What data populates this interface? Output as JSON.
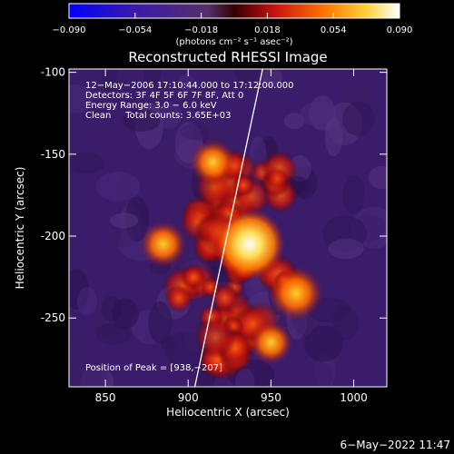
{
  "chart_data": {
    "type": "heatmap",
    "title": "Reconstructed RHESSI Image",
    "xlabel": "Heliocentric X (arcsec)",
    "ylabel": "Heliocentric Y (arcsec)",
    "xlim": [
      828,
      1020
    ],
    "ylim": [
      -292,
      -98
    ],
    "x_ticks": [
      "850",
      "900",
      "950",
      "1000"
    ],
    "y_ticks": [
      "-100",
      "-150",
      "-200",
      "-250"
    ],
    "x_tick_values": [
      850,
      900,
      950,
      1000
    ],
    "y_tick_values": [
      -100,
      -150,
      -200,
      -250
    ],
    "colorbar": {
      "tick_labels": [
        "−0.090",
        "−0.054",
        "−0.018",
        "0.018",
        "0.054",
        "0.090"
      ],
      "range": [
        -0.09,
        0.09
      ],
      "units": "(photons cm⁻² s⁻¹ asec⁻²)"
    },
    "annotations": [
      "12−May−2006 17:10:44.000 to 17:12:00.000",
      "Detectors: 3F 4F 5F 6F 7F 8F, Att 0",
      "Energy Range: 3.0 − 6.0 keV",
      "Clean     Total counts: 3.65E+03"
    ],
    "peak_label": "Position of Peak = [938,−207]",
    "peak_position": [
      938,
      -207
    ],
    "limb_line": [
      [
        904,
        -292
      ],
      [
        945,
        -98
      ]
    ],
    "timestamp": "6−May−2022 11:47",
    "hot_regions": [
      {
        "x": 937,
        "y": -205,
        "intensity": 0.09
      },
      {
        "x": 965,
        "y": -235,
        "intensity": 0.06
      },
      {
        "x": 885,
        "y": -205,
        "intensity": 0.045
      },
      {
        "x": 915,
        "y": -155,
        "intensity": 0.045
      },
      {
        "x": 950,
        "y": -265,
        "intensity": 0.04
      }
    ]
  }
}
